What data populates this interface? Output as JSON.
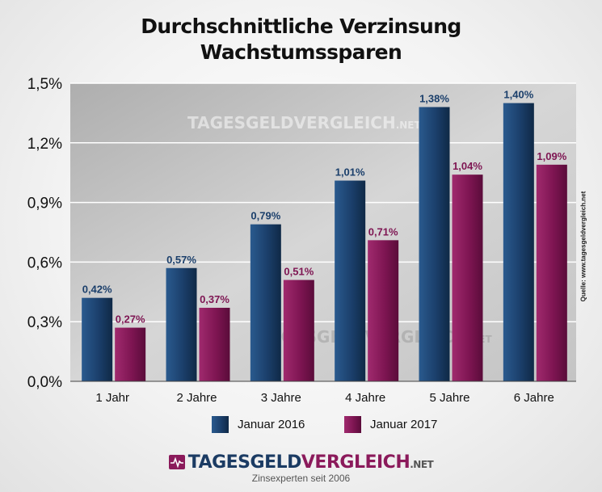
{
  "title_line1": "Durchschnittliche Verzinsung",
  "title_line2": "Wachstumssparen",
  "source": "Quelle: www.tagesgeldvergleich.net",
  "watermark": {
    "part1": "TAGESGELDVERGLEICH",
    "part2": ".NET"
  },
  "logo": {
    "part1": "TAGESGELD",
    "part2": "VERGLEICH",
    "part3": ".NET",
    "icon": "heartbeat-icon"
  },
  "tagline": "Zinsexperten seit 2006",
  "colors": {
    "series1": "#1b3f6b",
    "series2": "#7e1552",
    "label1": "#1b3f6b",
    "label2": "#7e1552"
  },
  "chart_data": {
    "type": "bar",
    "title": "Durchschnittliche Verzinsung Wachstumssparen",
    "categories": [
      "1 Jahr",
      "2 Jahre",
      "3 Jahre",
      "4 Jahre",
      "5 Jahre",
      "6 Jahre"
    ],
    "series": [
      {
        "name": "Januar 2016",
        "values": [
          0.42,
          0.57,
          0.79,
          1.01,
          1.38,
          1.4
        ],
        "labels": [
          "0,42%",
          "0,57%",
          "0,79%",
          "1,01%",
          "1,38%",
          "1,40%"
        ]
      },
      {
        "name": "Januar 2017",
        "values": [
          0.27,
          0.37,
          0.51,
          0.71,
          1.04,
          1.09
        ],
        "labels": [
          "0,27%",
          "0,37%",
          "0,51%",
          "0,71%",
          "1,04%",
          "1,09%"
        ]
      }
    ],
    "yticks": [
      0,
      0.3,
      0.6,
      0.9,
      1.2,
      1.5
    ],
    "ytick_labels": [
      "0,0%",
      "0,3%",
      "0,6%",
      "0,9%",
      "1,2%",
      "1,5%"
    ],
    "ylim": [
      0,
      1.5
    ],
    "grid": true,
    "legend": "bottom"
  }
}
